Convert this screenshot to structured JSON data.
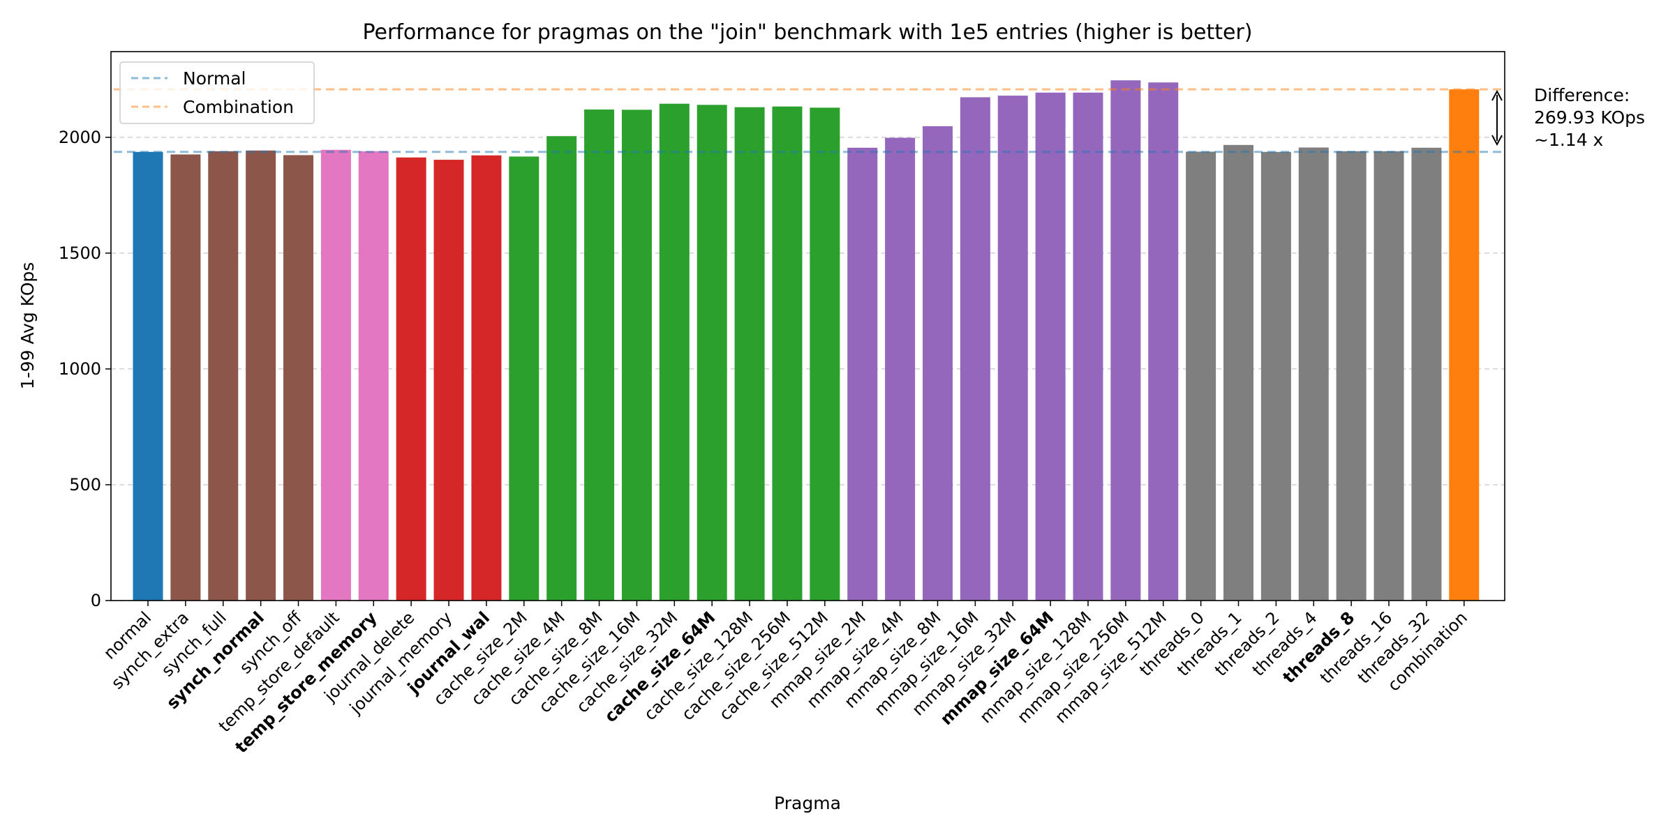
{
  "chart_data": {
    "type": "bar",
    "title": "Performance for pragmas on the \"join\" benchmark with 1e5 entries (higher is better)",
    "xlabel": "Pragma",
    "ylabel": "1-99 Avg KOps",
    "ylim": [
      0,
      2370
    ],
    "yticks": [
      0,
      500,
      1000,
      1500,
      2000
    ],
    "grid": "horizontal-dashed",
    "legend_position": "top-left",
    "categories": [
      "normal",
      "synch_extra",
      "synch_full",
      "synch_normal",
      "synch_off",
      "temp_store_default",
      "temp_store_memory",
      "journal_delete",
      "journal_memory",
      "journal_wal",
      "cache_size_2M",
      "cache_size_4M",
      "cache_size_8M",
      "cache_size_16M",
      "cache_size_32M",
      "cache_size_64M",
      "cache_size_128M",
      "cache_size_256M",
      "cache_size_512M",
      "mmap_size_2M",
      "mmap_size_4M",
      "mmap_size_8M",
      "mmap_size_16M",
      "mmap_size_32M",
      "mmap_size_64M",
      "mmap_size_128M",
      "mmap_size_256M",
      "mmap_size_512M",
      "threads_0",
      "threads_1",
      "threads_2",
      "threads_4",
      "threads_8",
      "threads_16",
      "threads_32",
      "combination"
    ],
    "values": [
      1937,
      1926,
      1940,
      1943,
      1923,
      1946,
      1940,
      1913,
      1903,
      1922,
      1917,
      2005,
      2120,
      2119,
      2145,
      2140,
      2130,
      2133,
      2128,
      1955,
      1998,
      2048,
      2173,
      2180,
      2193,
      2193,
      2246,
      2237,
      1938,
      1967,
      1937,
      1956,
      1940,
      1940,
      1955,
      2207
    ],
    "bold_labels": [
      "synch_normal",
      "temp_store_memory",
      "journal_wal",
      "cache_size_64M",
      "mmap_size_64M",
      "threads_8"
    ],
    "bar_colors": [
      "#1f77b4",
      "#8c564b",
      "#8c564b",
      "#8c564b",
      "#8c564b",
      "#e377c2",
      "#e377c2",
      "#d62728",
      "#d62728",
      "#d62728",
      "#2ca02c",
      "#2ca02c",
      "#2ca02c",
      "#2ca02c",
      "#2ca02c",
      "#2ca02c",
      "#2ca02c",
      "#2ca02c",
      "#2ca02c",
      "#9467bd",
      "#9467bd",
      "#9467bd",
      "#9467bd",
      "#9467bd",
      "#9467bd",
      "#9467bd",
      "#9467bd",
      "#9467bd",
      "#7f7f7f",
      "#7f7f7f",
      "#7f7f7f",
      "#7f7f7f",
      "#7f7f7f",
      "#7f7f7f",
      "#7f7f7f",
      "#ff7f0e"
    ],
    "reference_lines": [
      {
        "name": "Normal",
        "value": 1937,
        "color": "#1f77b4"
      },
      {
        "name": "Combination",
        "value": 2207,
        "color": "#ff7f0e"
      }
    ],
    "annotation": {
      "lines": [
        "Difference:",
        "269.93 KOps",
        "~1.14 x"
      ]
    }
  }
}
